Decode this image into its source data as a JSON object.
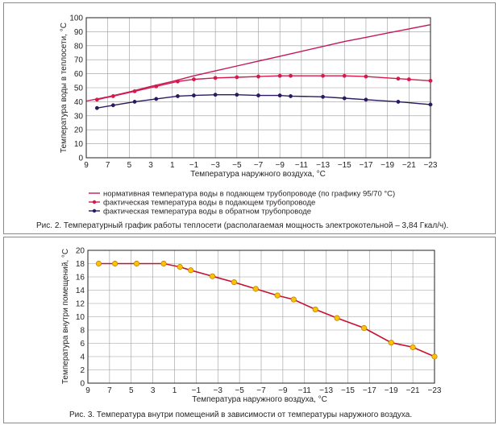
{
  "colors": {
    "normative": "#c2195b",
    "supply": "#d6194a",
    "return": "#2b1a5f",
    "room": "#c8102e",
    "room_marker": "#ffc200",
    "grid": "#9a9a9a"
  },
  "x_ticks": [
    "9",
    "7",
    "5",
    "3",
    "1",
    "−1",
    "−3",
    "−5",
    "−7",
    "−9",
    "−11",
    "−13",
    "−15",
    "−17",
    "−19",
    "−21",
    "−23"
  ],
  "chart_data": [
    {
      "type": "line",
      "xlabel": "Температура наружного воздуха, °С",
      "ylabel": "Температура воды в теплосети, °С",
      "xlim": [
        9,
        -23
      ],
      "ylim": [
        0,
        100
      ],
      "y_ticks": [
        "0",
        "10",
        "20",
        "30",
        "40",
        "50",
        "60",
        "70",
        "80",
        "90",
        "100"
      ],
      "grid": true,
      "legend_position": "below-plot",
      "series": [
        {
          "name": "нормативная температура воды в подающем трубопроводе (по графику 95/70 °С)",
          "marker": false,
          "x": [
            9,
            7,
            5,
            3,
            1,
            -1,
            -3,
            -5,
            -7,
            -9,
            -11,
            -13,
            -15,
            -17,
            -19,
            -21,
            -23
          ],
          "y": [
            40.5,
            43.5,
            47,
            51,
            54.5,
            58.5,
            62,
            65.5,
            69,
            72.5,
            76,
            79.5,
            83,
            86,
            89,
            92,
            95
          ]
        },
        {
          "name": "фактическая температура воды в подающем трубопроводе",
          "marker": true,
          "x": [
            8,
            6.5,
            4.5,
            2.5,
            0.5,
            -1,
            -3,
            -5,
            -7,
            -9,
            -10,
            -13,
            -15,
            -17,
            -20,
            -21,
            -23
          ],
          "y": [
            41.5,
            44,
            47.5,
            51,
            54.5,
            56,
            57,
            57.5,
            58,
            58.5,
            58.5,
            58.5,
            58.5,
            58,
            56.5,
            56,
            55
          ]
        },
        {
          "name": "фактическая температура воды в обратном трубопроводе",
          "marker": true,
          "x": [
            8,
            6.5,
            4.5,
            2.5,
            0.5,
            -1,
            -3,
            -5,
            -7,
            -9,
            -10,
            -13,
            -15,
            -17,
            -20,
            -23
          ],
          "y": [
            35.5,
            37.5,
            40,
            42,
            44,
            44.5,
            45,
            45,
            44.5,
            44.5,
            44,
            43.5,
            42.5,
            41.5,
            40,
            38
          ]
        }
      ],
      "caption": "Рис. 2. Температурный график работы теплосети (располагаемая мощность электрокотельной – 3,84 Гкал/ч)."
    },
    {
      "type": "line",
      "xlabel": "Температура наружного воздуха, °С",
      "ylabel": "Температура внутри помещений, °С",
      "xlim": [
        9,
        -23
      ],
      "ylim": [
        0,
        20
      ],
      "y_ticks": [
        "0",
        "2",
        "4",
        "6",
        "8",
        "10",
        "12",
        "14",
        "16",
        "18",
        "20"
      ],
      "grid": true,
      "series": [
        {
          "marker": true,
          "x": [
            8,
            6.5,
            4.5,
            2,
            0.5,
            -0.5,
            -2.5,
            -4.5,
            -6.5,
            -8.5,
            -10,
            -12,
            -14,
            -16.5,
            -19,
            -21,
            -23
          ],
          "y": [
            18,
            18,
            18,
            18,
            17.5,
            17,
            16.1,
            15.2,
            14.2,
            13.2,
            12.6,
            11.1,
            9.8,
            8.3,
            6.1,
            5.4,
            4
          ]
        }
      ],
      "caption": "Рис. 3. Температура внутри помещений в зависимости от температуры наружного воздуха."
    }
  ]
}
